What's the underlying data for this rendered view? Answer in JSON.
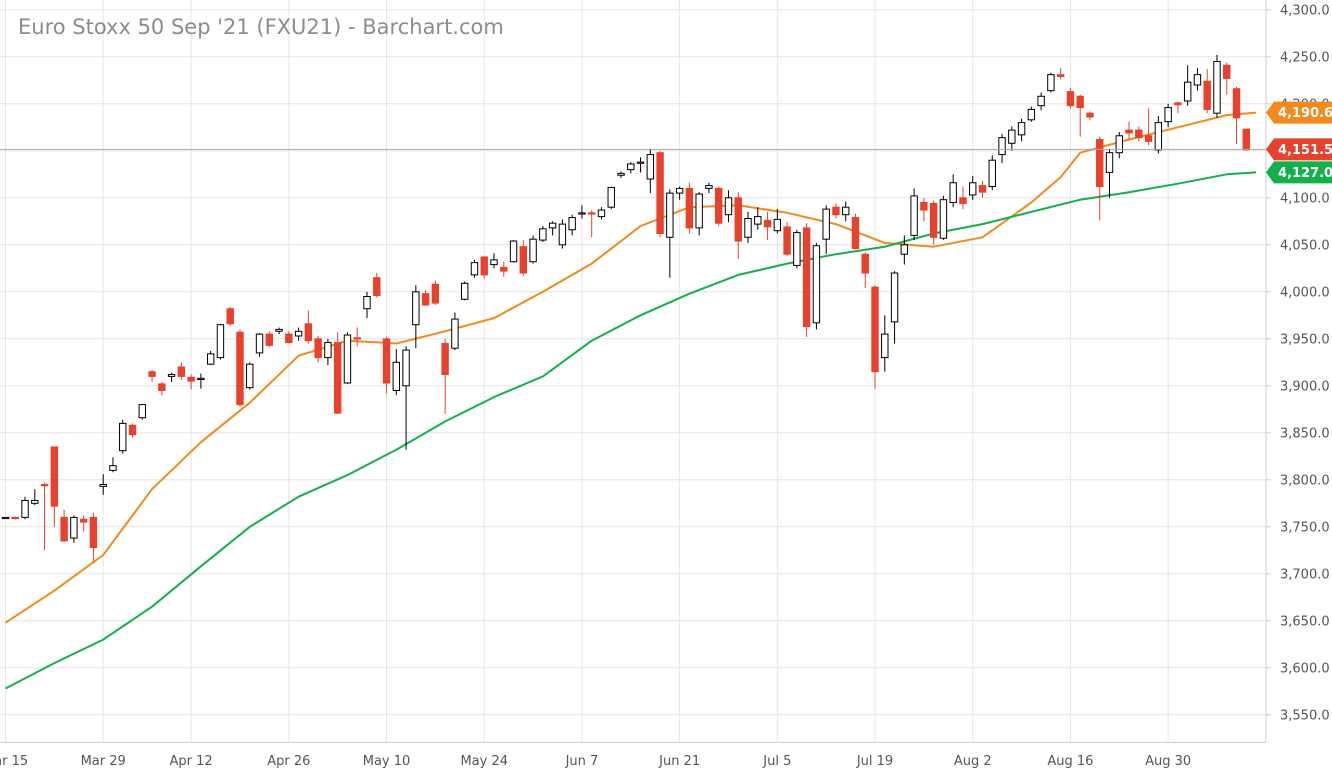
{
  "chart_data": {
    "type": "candlestick",
    "title": "Euro Stoxx 50 Sep '21 (FXU21) - Barchart.com",
    "ylim": [
      3525,
      4300
    ],
    "y_ticks": [
      "3,550.0",
      "3,600.0",
      "3,650.0",
      "3,700.0",
      "3,750.0",
      "3,800.0",
      "3,850.0",
      "3,900.0",
      "3,950.0",
      "4,000.0",
      "4,050.0",
      "4,100.0",
      "4,150.0",
      "4,200.0",
      "4,250.0",
      "4,300.0"
    ],
    "x_ticks": [
      {
        "label": "Mar 15",
        "index": 0
      },
      {
        "label": "Mar 29",
        "index": 10
      },
      {
        "label": "Apr 12",
        "index": 19
      },
      {
        "label": "Apr 26",
        "index": 29
      },
      {
        "label": "May 10",
        "index": 39
      },
      {
        "label": "May 24",
        "index": 49
      },
      {
        "label": "Jun 7",
        "index": 59
      },
      {
        "label": "Jun 21",
        "index": 69
      },
      {
        "label": "Jul 5",
        "index": 79
      },
      {
        "label": "Jul 19",
        "index": 89
      },
      {
        "label": "Aug 2",
        "index": 99
      },
      {
        "label": "Aug 16",
        "index": 109
      },
      {
        "label": "Aug 30",
        "index": 119
      }
    ],
    "grid": true,
    "candle_colors": {
      "up": "#ffffff",
      "up_stroke": "#000000",
      "down": "#e8412c",
      "wick": "#000000"
    },
    "candles": [
      {
        "date": "Mar 15",
        "o": 3760,
        "h": 3760,
        "l": 3759,
        "c": 3760
      },
      {
        "date": "Mar 16",
        "o": 3760,
        "h": 3761,
        "l": 3758,
        "c": 3759
      },
      {
        "date": "Mar 17",
        "o": 3760,
        "h": 3782,
        "l": 3758,
        "c": 3778
      },
      {
        "date": "Mar 18",
        "o": 3775,
        "h": 3790,
        "l": 3773,
        "c": 3778
      },
      {
        "date": "Mar 19",
        "o": 3795,
        "h": 3797,
        "l": 3725,
        "c": 3794
      },
      {
        "date": "Mar 22",
        "o": 3835,
        "h": 3835,
        "l": 3750,
        "c": 3772
      },
      {
        "date": "Mar 23",
        "o": 3760,
        "h": 3768,
        "l": 3734,
        "c": 3735
      },
      {
        "date": "Mar 24",
        "o": 3738,
        "h": 3762,
        "l": 3733,
        "c": 3760
      },
      {
        "date": "Mar 25",
        "o": 3758,
        "h": 3762,
        "l": 3745,
        "c": 3755
      },
      {
        "date": "Mar 26",
        "o": 3760,
        "h": 3765,
        "l": 3712,
        "c": 3728
      },
      {
        "date": "Mar 29",
        "o": 3793,
        "h": 3806,
        "l": 3784,
        "c": 3795
      },
      {
        "date": "Mar 30",
        "o": 3810,
        "h": 3824,
        "l": 3808,
        "c": 3815
      },
      {
        "date": "Mar 31",
        "o": 3831,
        "h": 3864,
        "l": 3828,
        "c": 3860
      },
      {
        "date": "Apr 1",
        "o": 3858,
        "h": 3860,
        "l": 3845,
        "c": 3848
      },
      {
        "date": "Apr 6",
        "o": 3866,
        "h": 3880,
        "l": 3864,
        "c": 3880
      },
      {
        "date": "Apr 7",
        "o": 3915,
        "h": 3917,
        "l": 3904,
        "c": 3910
      },
      {
        "date": "Apr 8",
        "o": 3902,
        "h": 3904,
        "l": 3890,
        "c": 3895
      },
      {
        "date": "Apr 9",
        "o": 3910,
        "h": 3914,
        "l": 3904,
        "c": 3912
      },
      {
        "date": "Apr 12",
        "o": 3920,
        "h": 3925,
        "l": 3906,
        "c": 3910
      },
      {
        "date": "Apr 13",
        "o": 3909,
        "h": 3912,
        "l": 3896,
        "c": 3905
      },
      {
        "date": "Apr 14",
        "o": 3907,
        "h": 3913,
        "l": 3897,
        "c": 3908
      },
      {
        "date": "Apr 15",
        "o": 3923,
        "h": 3937,
        "l": 3922,
        "c": 3934
      },
      {
        "date": "Apr 16",
        "o": 3930,
        "h": 3966,
        "l": 3928,
        "c": 3965
      },
      {
        "date": "Apr 19",
        "o": 3982,
        "h": 3984,
        "l": 3964,
        "c": 3966
      },
      {
        "date": "Apr 20",
        "o": 3957,
        "h": 3960,
        "l": 3878,
        "c": 3880
      },
      {
        "date": "Apr 21",
        "o": 3898,
        "h": 3925,
        "l": 3896,
        "c": 3923
      },
      {
        "date": "Apr 22",
        "o": 3935,
        "h": 3956,
        "l": 3931,
        "c": 3955
      },
      {
        "date": "Apr 23",
        "o": 3955,
        "h": 3958,
        "l": 3941,
        "c": 3943
      },
      {
        "date": "Apr 26",
        "o": 3958,
        "h": 3962,
        "l": 3955,
        "c": 3960
      },
      {
        "date": "Apr 27",
        "o": 3955,
        "h": 3958,
        "l": 3945,
        "c": 3946
      },
      {
        "date": "Apr 28",
        "o": 3953,
        "h": 3962,
        "l": 3948,
        "c": 3958
      },
      {
        "date": "Apr 29",
        "o": 3966,
        "h": 3980,
        "l": 3945,
        "c": 3948
      },
      {
        "date": "Apr 30",
        "o": 3950,
        "h": 3953,
        "l": 3925,
        "c": 3930
      },
      {
        "date": "May 3",
        "o": 3930,
        "h": 3950,
        "l": 3922,
        "c": 3946
      },
      {
        "date": "May 4",
        "o": 3946,
        "h": 3957,
        "l": 3870,
        "c": 3871
      },
      {
        "date": "May 5",
        "o": 3903,
        "h": 3957,
        "l": 3902,
        "c": 3954
      },
      {
        "date": "May 6",
        "o": 3951,
        "h": 3962,
        "l": 3942,
        "c": 3950
      },
      {
        "date": "May 7",
        "o": 3982,
        "h": 4000,
        "l": 3972,
        "c": 3995
      },
      {
        "date": "May 10",
        "o": 4015,
        "h": 4020,
        "l": 3994,
        "c": 3996
      },
      {
        "date": "May 11",
        "o": 3950,
        "h": 3952,
        "l": 3892,
        "c": 3903
      },
      {
        "date": "May 12",
        "o": 3895,
        "h": 3939,
        "l": 3890,
        "c": 3925
      },
      {
        "date": "May 13",
        "o": 3900,
        "h": 3942,
        "l": 3832,
        "c": 3938
      },
      {
        "date": "May 14",
        "o": 3965,
        "h": 4007,
        "l": 3940,
        "c": 4000
      },
      {
        "date": "May 17",
        "o": 3998,
        "h": 4002,
        "l": 3985,
        "c": 3986
      },
      {
        "date": "May 18",
        "o": 4008,
        "h": 4012,
        "l": 3986,
        "c": 3988
      },
      {
        "date": "May 19",
        "o": 3945,
        "h": 3950,
        "l": 3870,
        "c": 3912
      },
      {
        "date": "May 20",
        "o": 3940,
        "h": 3978,
        "l": 3938,
        "c": 3971
      },
      {
        "date": "May 21",
        "o": 3992,
        "h": 4011,
        "l": 3991,
        "c": 4009
      },
      {
        "date": "May 24",
        "o": 4018,
        "h": 4034,
        "l": 4015,
        "c": 4031
      },
      {
        "date": "May 25",
        "o": 4037,
        "h": 4038,
        "l": 4014,
        "c": 4018
      },
      {
        "date": "May 26",
        "o": 4029,
        "h": 4041,
        "l": 4025,
        "c": 4034
      },
      {
        "date": "May 27",
        "o": 4026,
        "h": 4032,
        "l": 4016,
        "c": 4022
      },
      {
        "date": "May 28",
        "o": 4032,
        "h": 4055,
        "l": 4031,
        "c": 4054
      },
      {
        "date": "May 31",
        "o": 4048,
        "h": 4055,
        "l": 4017,
        "c": 4020
      },
      {
        "date": "Jun 1",
        "o": 4032,
        "h": 4060,
        "l": 4030,
        "c": 4056
      },
      {
        "date": "Jun 2",
        "o": 4055,
        "h": 4070,
        "l": 4053,
        "c": 4067
      },
      {
        "date": "Jun 3",
        "o": 4068,
        "h": 4075,
        "l": 4060,
        "c": 4073
      },
      {
        "date": "Jun 4",
        "o": 4050,
        "h": 4077,
        "l": 4046,
        "c": 4072
      },
      {
        "date": "Jun 7",
        "o": 4066,
        "h": 4082,
        "l": 4060,
        "c": 4079
      },
      {
        "date": "Jun 8",
        "o": 4083,
        "h": 4092,
        "l": 4078,
        "c": 4084
      },
      {
        "date": "Jun 9",
        "o": 4084,
        "h": 4087,
        "l": 4058,
        "c": 4083
      },
      {
        "date": "Jun 10",
        "o": 4080,
        "h": 4090,
        "l": 4077,
        "c": 4087
      },
      {
        "date": "Jun 11",
        "o": 4090,
        "h": 4112,
        "l": 4088,
        "c": 4111
      },
      {
        "date": "Jun 14",
        "o": 4124,
        "h": 4128,
        "l": 4121,
        "c": 4126
      },
      {
        "date": "Jun 15",
        "o": 4130,
        "h": 4138,
        "l": 4126,
        "c": 4136
      },
      {
        "date": "Jun 16",
        "o": 4138,
        "h": 4143,
        "l": 4127,
        "c": 4138
      },
      {
        "date": "Jun 17",
        "o": 4120,
        "h": 4152,
        "l": 4105,
        "c": 4146
      },
      {
        "date": "Jun 18",
        "o": 4148,
        "h": 4150,
        "l": 4058,
        "c": 4062
      },
      {
        "date": "Jun 21",
        "o": 4058,
        "h": 4109,
        "l": 4015,
        "c": 4105
      },
      {
        "date": "Jun 22",
        "o": 4105,
        "h": 4112,
        "l": 4098,
        "c": 4110
      },
      {
        "date": "Jun 23",
        "o": 4110,
        "h": 4116,
        "l": 4062,
        "c": 4068
      },
      {
        "date": "Jun 24",
        "o": 4068,
        "h": 4106,
        "l": 4060,
        "c": 4104
      },
      {
        "date": "Jun 25",
        "o": 4110,
        "h": 4116,
        "l": 4105,
        "c": 4113
      },
      {
        "date": "Jun 28",
        "o": 4110,
        "h": 4112,
        "l": 4070,
        "c": 4073
      },
      {
        "date": "Jun 29",
        "o": 4082,
        "h": 4108,
        "l": 4074,
        "c": 4100
      },
      {
        "date": "Jun 30",
        "o": 4100,
        "h": 4106,
        "l": 4035,
        "c": 4054
      },
      {
        "date": "Jul 1",
        "o": 4058,
        "h": 4085,
        "l": 4052,
        "c": 4078
      },
      {
        "date": "Jul 2",
        "o": 4072,
        "h": 4090,
        "l": 4066,
        "c": 4080
      },
      {
        "date": "Jul 5",
        "o": 4076,
        "h": 4085,
        "l": 4055,
        "c": 4069
      },
      {
        "date": "Jul 6",
        "o": 4065,
        "h": 4088,
        "l": 4062,
        "c": 4077
      },
      {
        "date": "Jul 7",
        "o": 4069,
        "h": 4074,
        "l": 4038,
        "c": 4040
      },
      {
        "date": "Jul 8",
        "o": 4028,
        "h": 4066,
        "l": 4025,
        "c": 4063
      },
      {
        "date": "Jul 9",
        "o": 4068,
        "h": 4073,
        "l": 3952,
        "c": 3963
      },
      {
        "date": "Jul 12",
        "o": 3967,
        "h": 4052,
        "l": 3960,
        "c": 4049
      },
      {
        "date": "Jul 13",
        "o": 4056,
        "h": 4092,
        "l": 4040,
        "c": 4088
      },
      {
        "date": "Jul 14",
        "o": 4090,
        "h": 4094,
        "l": 4078,
        "c": 4082
      },
      {
        "date": "Jul 15",
        "o": 4082,
        "h": 4096,
        "l": 4075,
        "c": 4090
      },
      {
        "date": "Jul 16",
        "o": 4079,
        "h": 4083,
        "l": 4045,
        "c": 4046
      },
      {
        "date": "Jul 19",
        "o": 4040,
        "h": 4042,
        "l": 4004,
        "c": 4020
      },
      {
        "date": "Jul 20",
        "o": 4005,
        "h": 4007,
        "l": 3897,
        "c": 3915
      },
      {
        "date": "Jul 21",
        "o": 3930,
        "h": 3975,
        "l": 3915,
        "c": 3955
      },
      {
        "date": "Jul 22",
        "o": 3968,
        "h": 4022,
        "l": 3945,
        "c": 4020
      },
      {
        "date": "Jul 23",
        "o": 4040,
        "h": 4060,
        "l": 4029,
        "c": 4050
      },
      {
        "date": "Jul 26",
        "o": 4060,
        "h": 4110,
        "l": 4055,
        "c": 4102
      },
      {
        "date": "Jul 27",
        "o": 4095,
        "h": 4100,
        "l": 4075,
        "c": 4087
      },
      {
        "date": "Jul 28",
        "o": 4094,
        "h": 4097,
        "l": 4050,
        "c": 4058
      },
      {
        "date": "Jul 29",
        "o": 4057,
        "h": 4102,
        "l": 4055,
        "c": 4098
      },
      {
        "date": "Jul 30",
        "o": 4095,
        "h": 4125,
        "l": 4090,
        "c": 4116
      },
      {
        "date": "Aug 2",
        "o": 4100,
        "h": 4112,
        "l": 4088,
        "c": 4094
      },
      {
        "date": "Aug 3",
        "o": 4103,
        "h": 4123,
        "l": 4098,
        "c": 4116
      },
      {
        "date": "Aug 4",
        "o": 4113,
        "h": 4118,
        "l": 4100,
        "c": 4106
      },
      {
        "date": "Aug 5",
        "o": 4112,
        "h": 4145,
        "l": 4108,
        "c": 4140
      },
      {
        "date": "Aug 6",
        "o": 4146,
        "h": 4168,
        "l": 4137,
        "c": 4164
      },
      {
        "date": "Aug 9",
        "o": 4158,
        "h": 4176,
        "l": 4150,
        "c": 4172
      },
      {
        "date": "Aug 10",
        "o": 4167,
        "h": 4184,
        "l": 4160,
        "c": 4180
      },
      {
        "date": "Aug 11",
        "o": 4183,
        "h": 4197,
        "l": 4181,
        "c": 4194
      },
      {
        "date": "Aug 12",
        "o": 4198,
        "h": 4212,
        "l": 4193,
        "c": 4208
      },
      {
        "date": "Aug 13",
        "o": 4214,
        "h": 4233,
        "l": 4212,
        "c": 4231
      },
      {
        "date": "Aug 16",
        "o": 4231,
        "h": 4238,
        "l": 4226,
        "c": 4229
      },
      {
        "date": "Aug 17",
        "o": 4213,
        "h": 4217,
        "l": 4195,
        "c": 4198
      },
      {
        "date": "Aug 18",
        "o": 4208,
        "h": 4210,
        "l": 4165,
        "c": 4196
      },
      {
        "date": "Aug 19",
        "o": 4190,
        "h": 4192,
        "l": 4183,
        "c": 4186
      },
      {
        "date": "Aug 20",
        "o": 4162,
        "h": 4165,
        "l": 4076,
        "c": 4112
      },
      {
        "date": "Aug 23",
        "o": 4127,
        "h": 4152,
        "l": 4100,
        "c": 4148
      },
      {
        "date": "Aug 24",
        "o": 4148,
        "h": 4170,
        "l": 4142,
        "c": 4166
      },
      {
        "date": "Aug 25",
        "o": 4172,
        "h": 4181,
        "l": 4162,
        "c": 4169
      },
      {
        "date": "Aug 26",
        "o": 4172,
        "h": 4176,
        "l": 4160,
        "c": 4164
      },
      {
        "date": "Aug 27",
        "o": 4166,
        "h": 4195,
        "l": 4156,
        "c": 4160
      },
      {
        "date": "Aug 30",
        "o": 4151,
        "h": 4187,
        "l": 4147,
        "c": 4180
      },
      {
        "date": "Aug 31",
        "o": 4181,
        "h": 4200,
        "l": 4175,
        "c": 4196
      },
      {
        "date": "Sep 1",
        "o": 4201,
        "h": 4202,
        "l": 4190,
        "c": 4199
      },
      {
        "date": "Sep 2",
        "o": 4203,
        "h": 4241,
        "l": 4198,
        "c": 4223
      },
      {
        "date": "Sep 3",
        "o": 4220,
        "h": 4238,
        "l": 4214,
        "c": 4231
      },
      {
        "date": "Sep 6",
        "o": 4224,
        "h": 4237,
        "l": 4190,
        "c": 4194
      },
      {
        "date": "Sep 7",
        "o": 4190,
        "h": 4252,
        "l": 4185,
        "c": 4245
      },
      {
        "date": "Sep 8",
        "o": 4241,
        "h": 4244,
        "l": 4210,
        "c": 4227
      },
      {
        "date": "Sep 9",
        "o": 4216,
        "h": 4218,
        "l": 4157,
        "c": 4185
      },
      {
        "date": "Sep 10",
        "o": 4173,
        "h": 4173,
        "l": 4150,
        "c": 4151
      }
    ],
    "moving_averages": [
      {
        "color": "#f28a1e",
        "x": [
          0,
          5,
          10,
          15,
          20,
          25,
          30,
          35,
          40,
          45,
          50,
          55,
          60,
          65,
          70,
          75,
          80,
          85,
          90,
          95,
          100,
          105,
          108,
          110,
          115,
          120,
          125,
          128
        ],
        "y": [
          3648,
          3682,
          3720,
          3790,
          3840,
          3882,
          3932,
          3948,
          3945,
          3958,
          3972,
          4000,
          4030,
          4070,
          4090,
          4092,
          4084,
          4072,
          4052,
          4048,
          4058,
          4095,
          4122,
          4148,
          4162,
          4175,
          4188,
          4190.6
        ]
      },
      {
        "color": "#13b04b",
        "x": [
          0,
          5,
          10,
          15,
          20,
          25,
          30,
          35,
          40,
          45,
          50,
          55,
          60,
          65,
          70,
          75,
          80,
          85,
          90,
          95,
          100,
          105,
          110,
          115,
          120,
          125,
          128
        ],
        "y": [
          3578,
          3605,
          3630,
          3665,
          3708,
          3750,
          3782,
          3805,
          3832,
          3862,
          3888,
          3910,
          3948,
          3975,
          3998,
          4018,
          4030,
          4040,
          4048,
          4062,
          4072,
          4085,
          4098,
          4106,
          4115,
          4125,
          4127.0
        ]
      }
    ],
    "price_tags": [
      {
        "label": "4,190.6",
        "value": 4190.6,
        "color": "#f28a1e"
      },
      {
        "label": "4,151.5",
        "value": 4151.5,
        "color": "#e8412c"
      },
      {
        "label": "4,127.0",
        "value": 4127.0,
        "color": "#13b04b"
      }
    ],
    "last_price_line": 4151.5
  }
}
